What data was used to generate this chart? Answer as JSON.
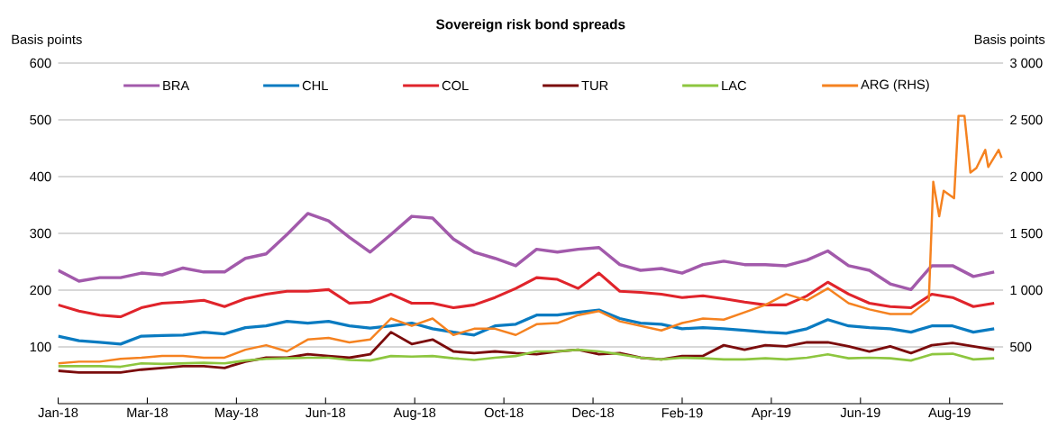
{
  "chart_data": {
    "type": "line",
    "title": "Sovereign risk bond spreads",
    "ylabel": "Basis points",
    "y2label": "Basis points",
    "x": [
      "2018-01-01",
      "2018-01-15",
      "2018-01-29",
      "2018-02-12",
      "2018-02-26",
      "2018-03-12",
      "2018-03-26",
      "2018-04-09",
      "2018-04-23",
      "2018-05-07",
      "2018-05-21",
      "2018-06-04",
      "2018-06-18",
      "2018-07-02",
      "2018-07-16",
      "2018-07-30",
      "2018-08-13",
      "2018-08-27",
      "2018-09-10",
      "2018-09-24",
      "2018-10-08",
      "2018-10-22",
      "2018-11-05",
      "2018-11-19",
      "2018-12-03",
      "2018-12-17",
      "2018-12-31",
      "2019-01-14",
      "2019-01-28",
      "2019-02-11",
      "2019-02-25",
      "2019-03-11",
      "2019-03-25",
      "2019-04-08",
      "2019-04-22",
      "2019-05-06",
      "2019-05-20",
      "2019-06-03",
      "2019-06-17",
      "2019-07-01",
      "2019-07-15",
      "2019-07-29",
      "2019-08-12",
      "2019-08-26",
      "2019-09-09",
      "2019-09-23"
    ],
    "series": [
      {
        "name": "BRA",
        "color": "#a25aab",
        "values": [
          235,
          216,
          222,
          222,
          230,
          227,
          239,
          232,
          232,
          256,
          264,
          298,
          335,
          322,
          293,
          267,
          298,
          330,
          327,
          290,
          267,
          256,
          243,
          272,
          267,
          272,
          275,
          245,
          235,
          238,
          230,
          245,
          251,
          245,
          245,
          243,
          253,
          269,
          243,
          235,
          211,
          201,
          243,
          243,
          224,
          232
        ]
      },
      {
        "name": "CHL",
        "color": "#0a7bc1",
        "values": [
          119,
          111,
          108,
          105,
          119,
          120,
          121,
          126,
          123,
          134,
          137,
          145,
          142,
          145,
          137,
          133,
          137,
          142,
          132,
          126,
          121,
          137,
          140,
          156,
          156,
          161,
          165,
          150,
          142,
          140,
          132,
          134,
          132,
          129,
          126,
          124,
          132,
          148,
          137,
          134,
          132,
          126,
          137,
          137,
          126,
          132
        ]
      },
      {
        "name": "COL",
        "color": "#e0242b",
        "values": [
          174,
          163,
          156,
          153,
          169,
          177,
          179,
          182,
          171,
          185,
          193,
          198,
          198,
          201,
          177,
          179,
          193,
          177,
          177,
          169,
          174,
          187,
          203,
          222,
          219,
          203,
          230,
          198,
          196,
          193,
          187,
          190,
          185,
          179,
          174,
          174,
          190,
          214,
          193,
          177,
          171,
          169,
          193,
          187,
          171,
          177
        ]
      },
      {
        "name": "TUR",
        "color": "#7b0c0c",
        "values": [
          58,
          55,
          55,
          55,
          60,
          63,
          66,
          66,
          63,
          74,
          81,
          81,
          87,
          84,
          81,
          87,
          126,
          105,
          113,
          92,
          89,
          92,
          89,
          87,
          92,
          95,
          87,
          89,
          81,
          78,
          84,
          84,
          103,
          95,
          103,
          101,
          108,
          108,
          101,
          92,
          101,
          89,
          103,
          107,
          101,
          95
        ]
      },
      {
        "name": "LAC",
        "color": "#8dc63f",
        "values": [
          66,
          66,
          66,
          65,
          71,
          70,
          71,
          72,
          71,
          76,
          79,
          80,
          81,
          81,
          77,
          76,
          84,
          83,
          84,
          80,
          77,
          81,
          84,
          92,
          92,
          95,
          92,
          87,
          81,
          78,
          81,
          80,
          78,
          78,
          80,
          78,
          81,
          87,
          80,
          81,
          80,
          76,
          87,
          88,
          78,
          80
        ]
      },
      {
        "name": "ARG (RHS)",
        "color": "#f58220",
        "axis": "y2",
        "x": [
          "2018-01-01",
          "2018-01-15",
          "2018-01-29",
          "2018-02-12",
          "2018-02-26",
          "2018-03-12",
          "2018-03-26",
          "2018-04-09",
          "2018-04-23",
          "2018-05-07",
          "2018-05-21",
          "2018-06-04",
          "2018-06-18",
          "2018-07-02",
          "2018-07-16",
          "2018-07-30",
          "2018-08-13",
          "2018-08-27",
          "2018-09-10",
          "2018-09-24",
          "2018-10-08",
          "2018-10-22",
          "2018-11-05",
          "2018-11-19",
          "2018-12-03",
          "2018-12-17",
          "2018-12-31",
          "2019-01-14",
          "2019-01-28",
          "2019-02-11",
          "2019-02-25",
          "2019-03-11",
          "2019-03-25",
          "2019-04-08",
          "2019-04-22",
          "2019-05-06",
          "2019-05-20",
          "2019-06-03",
          "2019-06-17",
          "2019-07-01",
          "2019-07-15",
          "2019-07-29",
          "2019-08-10",
          "2019-08-13",
          "2019-08-17",
          "2019-08-20",
          "2019-08-27",
          "2019-08-30",
          "2019-09-03",
          "2019-09-07",
          "2019-09-11",
          "2019-09-17",
          "2019-09-19",
          "2019-09-26",
          "2019-09-28"
        ],
        "values": [
          355,
          370,
          370,
          395,
          405,
          420,
          420,
          405,
          405,
          475,
          515,
          460,
          565,
          580,
          540,
          565,
          750,
          685,
          750,
          605,
          660,
          660,
          605,
          700,
          710,
          780,
          815,
          725,
          685,
          645,
          710,
          750,
          740,
          805,
          870,
          965,
          910,
          1015,
          885,
          830,
          790,
          790,
          910,
          1955,
          1650,
          1875,
          1810,
          2535,
          2535,
          2035,
          2075,
          2235,
          2085,
          2235,
          2165
        ]
      }
    ],
    "xlim": [
      "2018-01-01",
      "2019-09-29"
    ],
    "xticks": [
      {
        "value": "2018-01-01",
        "label": "Jan-18"
      },
      {
        "value": "2018-03-02",
        "label": "Mar-18"
      },
      {
        "value": "2018-05-01",
        "label": "May-18"
      },
      {
        "value": "2018-06-30",
        "label": "Jun-18"
      },
      {
        "value": "2018-08-29",
        "label": "Aug-18"
      },
      {
        "value": "2018-10-28",
        "label": "Oct-18"
      },
      {
        "value": "2018-12-27",
        "label": "Dec-18"
      },
      {
        "value": "2019-02-25",
        "label": "Feb-19"
      },
      {
        "value": "2019-04-26",
        "label": "Apr-19"
      },
      {
        "value": "2019-06-25",
        "label": "Jun-19"
      },
      {
        "value": "2019-08-24",
        "label": "Aug-19"
      }
    ],
    "ylim": [
      0,
      600
    ],
    "yticks": [
      100,
      200,
      300,
      400,
      500,
      600
    ],
    "y2lim": [
      0,
      3000
    ],
    "y2ticks": [
      500,
      {
        "value": 1000,
        "label": "1 000"
      },
      {
        "value": 1500,
        "label": "1 500"
      },
      {
        "value": 2000,
        "label": "2 000"
      },
      {
        "value": 2500,
        "label": "2 500"
      },
      {
        "value": 3000,
        "label": "3 000"
      }
    ],
    "grid": "y",
    "legend": "top"
  }
}
